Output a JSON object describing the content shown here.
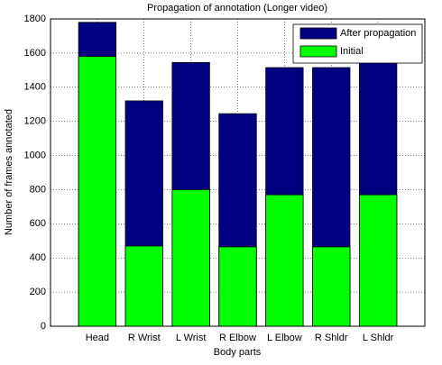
{
  "chart_data": {
    "type": "bar",
    "title": "Propagation of annotation (Longer video)",
    "xlabel": "Body parts",
    "ylabel": "Number of frames annotated",
    "categories": [
      "Head",
      "R Wrist",
      "L Wrist",
      "R Elbow",
      "L Elbow",
      "R Shldr",
      "L Shldr"
    ],
    "series": [
      {
        "name": "After propagation",
        "color": "#000080",
        "values": [
          1780,
          1320,
          1545,
          1245,
          1515,
          1515,
          1555
        ]
      },
      {
        "name": "Initial",
        "color": "#00ff00",
        "values": [
          1580,
          470,
          800,
          465,
          770,
          465,
          770
        ]
      }
    ],
    "ylim": [
      0,
      1800
    ],
    "yticks": [
      0,
      200,
      400,
      600,
      800,
      1000,
      1200,
      1400,
      1600,
      1800
    ],
    "grid": true,
    "legend": "upper right"
  }
}
